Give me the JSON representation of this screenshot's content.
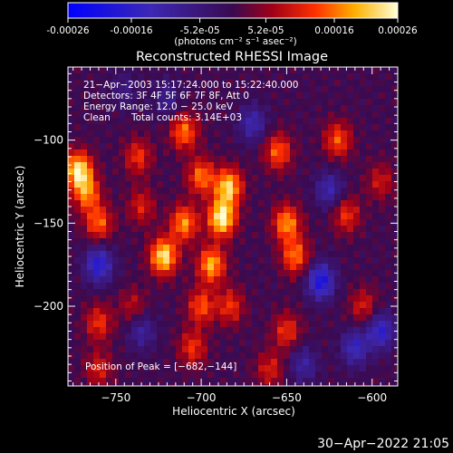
{
  "colorbar": {
    "tick_labels": [
      "-0.00026",
      "-0.00016",
      "-5.2e-05",
      "5.2e-05",
      "0.00016",
      "0.00026"
    ],
    "tick_values": [
      -0.00026,
      -0.00016,
      -5.2e-05,
      5.2e-05,
      0.00016,
      0.00026
    ],
    "range": [
      -0.00026,
      0.00026
    ],
    "unit_label": "(photons cm⁻² s⁻¹ asec⁻²)"
  },
  "chart_data": {
    "type": "heatmap",
    "title": "Reconstructed RHESSI Image",
    "xlabel": "Heliocentric X (arcsec)",
    "ylabel": "Heliocentric Y (arcsec)",
    "xlim": [
      -778,
      -585
    ],
    "ylim": [
      -248,
      -56
    ],
    "xticks": [
      -750,
      -700,
      -650,
      -600
    ],
    "yticks": [
      -100,
      -150,
      -200
    ],
    "xtick_labels": [
      "−750",
      "−700",
      "−650",
      "−600"
    ],
    "ytick_labels": [
      "−100",
      "−150",
      "−200"
    ],
    "value_range": [
      -0.00026,
      0.00026
    ],
    "info_lines": [
      "21−Apr−2003 15:17:24.000 to 15:22:40.000",
      "Detectors: 3F 4F 5F 6F 7F 8F, Att 0",
      "Energy Range: 12.0 − 25.0 keV"
    ],
    "clean_label": "Clean",
    "total_counts_label": "Total counts: 3.14E+03",
    "peak_label": "Position of Peak = [−682,−144]",
    "peak": [
      -682,
      -144
    ],
    "blobs": [
      {
        "x": -688,
        "y": -147,
        "value": 0.00026
      },
      {
        "x": -684,
        "y": -128,
        "value": 0.00022
      },
      {
        "x": -694,
        "y": -175,
        "value": 0.0002
      },
      {
        "x": -700,
        "y": -122,
        "value": 0.00016
      },
      {
        "x": -710,
        "y": -150,
        "value": 0.00018
      },
      {
        "x": -722,
        "y": -170,
        "value": 0.00024
      },
      {
        "x": -710,
        "y": -95,
        "value": 0.00016
      },
      {
        "x": -700,
        "y": -200,
        "value": 0.00014
      },
      {
        "x": -705,
        "y": -225,
        "value": 0.00012
      },
      {
        "x": -683,
        "y": -200,
        "value": 0.00012
      },
      {
        "x": -772,
        "y": -118,
        "value": 0.00024
      },
      {
        "x": -767,
        "y": -132,
        "value": 0.00016
      },
      {
        "x": -760,
        "y": -150,
        "value": 0.00015
      },
      {
        "x": -760,
        "y": -210,
        "value": 0.00012
      },
      {
        "x": -760,
        "y": -238,
        "value": 0.0001
      },
      {
        "x": -737,
        "y": -110,
        "value": 0.00012
      },
      {
        "x": -735,
        "y": -140,
        "value": 0.0001
      },
      {
        "x": -740,
        "y": -200,
        "value": 8e-05
      },
      {
        "x": -655,
        "y": -107,
        "value": 0.00015
      },
      {
        "x": -650,
        "y": -150,
        "value": 0.00018
      },
      {
        "x": -645,
        "y": -170,
        "value": 0.00016
      },
      {
        "x": -650,
        "y": -215,
        "value": 0.00012
      },
      {
        "x": -660,
        "y": -238,
        "value": 0.0001
      },
      {
        "x": -620,
        "y": -100,
        "value": 0.00014
      },
      {
        "x": -615,
        "y": -145,
        "value": 0.00012
      },
      {
        "x": -605,
        "y": -200,
        "value": 0.0001
      },
      {
        "x": -595,
        "y": -125,
        "value": 9e-05
      },
      {
        "x": -760,
        "y": -175,
        "value": -0.00018
      },
      {
        "x": -735,
        "y": -215,
        "value": -0.0001
      },
      {
        "x": -670,
        "y": -90,
        "value": -0.00012
      },
      {
        "x": -630,
        "y": -185,
        "value": -0.0002
      },
      {
        "x": -625,
        "y": -130,
        "value": -0.00012
      },
      {
        "x": -595,
        "y": -215,
        "value": -0.00016
      },
      {
        "x": -610,
        "y": -225,
        "value": -0.00014
      },
      {
        "x": -640,
        "y": -235,
        "value": -0.0001
      },
      {
        "x": -720,
        "y": -75,
        "value": -8e-05
      },
      {
        "x": -745,
        "y": -70,
        "value": -6e-05
      }
    ]
  },
  "footer": {
    "timestamp": "30−Apr−2022 21:05"
  },
  "colors": {
    "background": "#000000",
    "foreground": "#ffffff"
  }
}
